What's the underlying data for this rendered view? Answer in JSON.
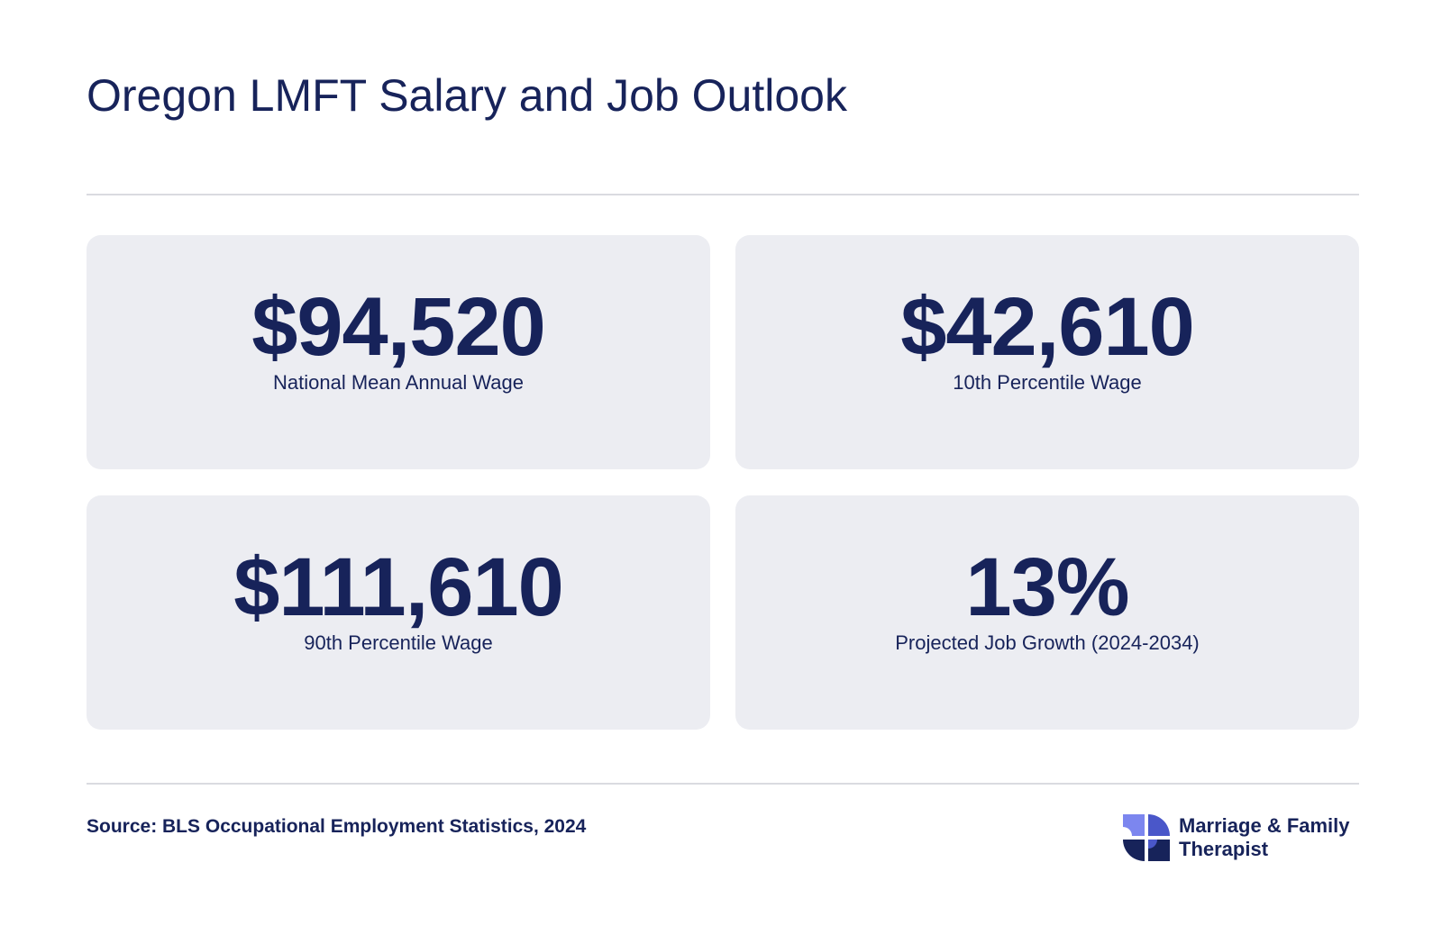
{
  "header": {
    "title": "Oregon LMFT Salary and Job Outlook"
  },
  "stats": [
    {
      "value": "$94,520",
      "label": "National Mean Annual Wage"
    },
    {
      "value": "$42,610",
      "label": "10th Percentile Wage"
    },
    {
      "value": "$111,610",
      "label": "90th Percentile Wage"
    },
    {
      "value": "13%",
      "label": "Projected Job Growth (2024-2034)"
    }
  ],
  "footer": {
    "source": "Source: BLS Occupational Employment Statistics, 2024",
    "brand_line1": "Marriage & Family",
    "brand_line2": "Therapist",
    "logo_icon": "pinwheel-logo-icon"
  },
  "colors": {
    "text": "#17235a",
    "card_background": "#ecedf2",
    "divider": "#dadbe0",
    "logo_light": "#7c86ef",
    "logo_medium": "#4a57c9",
    "logo_dark": "#17235a"
  }
}
